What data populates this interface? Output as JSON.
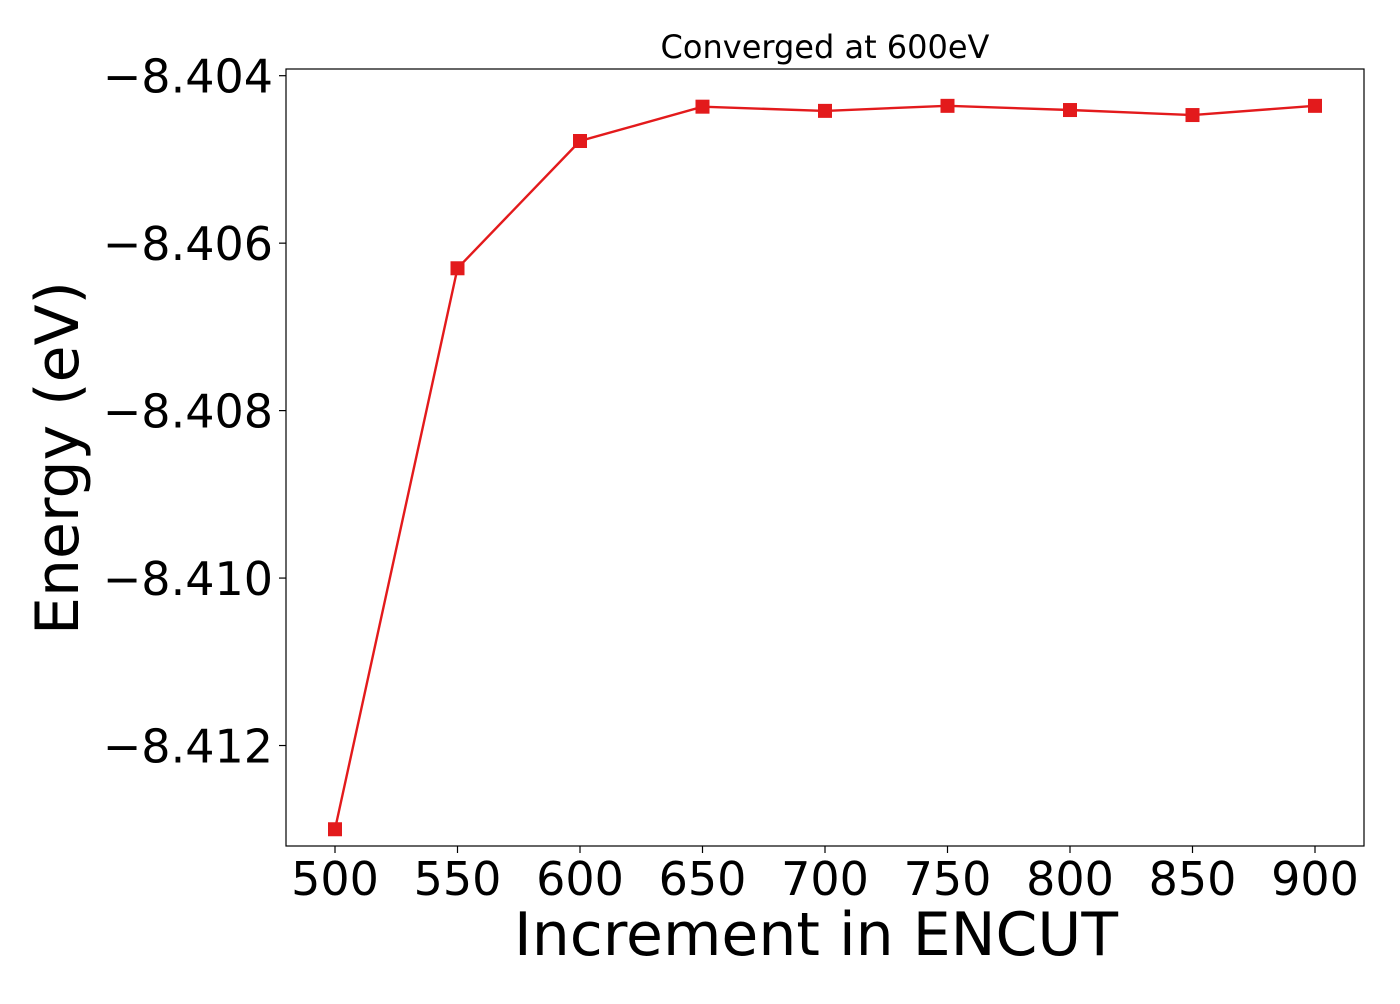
{
  "chart_data": {
    "type": "line",
    "title": "Converged at 600eV",
    "xlabel": "Increment in ENCUT",
    "ylabel": "Energy (eV)",
    "x": [
      500,
      550,
      600,
      650,
      700,
      750,
      800,
      850,
      900
    ],
    "series": [
      {
        "values": [
          -8.413,
          -8.4063,
          -8.40478,
          -8.40437,
          -8.40442,
          -8.40436,
          -8.40441,
          -8.40447,
          -8.40436
        ],
        "color": "#e31a1c",
        "marker": "square"
      }
    ],
    "xticks": [
      500,
      550,
      600,
      650,
      700,
      750,
      800,
      850,
      900
    ],
    "xtick_labels": [
      "500",
      "550",
      "600",
      "650",
      "700",
      "750",
      "800",
      "850",
      "900"
    ],
    "yticks": [
      -8.404,
      -8.406,
      -8.408,
      -8.41,
      -8.412
    ],
    "ytick_labels": [
      "−8.404",
      "−8.406",
      "−8.408",
      "−8.410",
      "−8.412"
    ],
    "xlim": [
      480,
      920
    ],
    "ylim": [
      -8.4132,
      -8.40392
    ],
    "grid": false,
    "legend": "none"
  }
}
